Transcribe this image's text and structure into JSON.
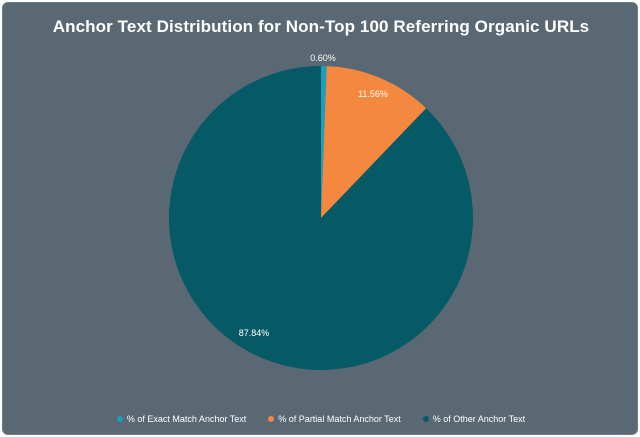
{
  "chart_data": {
    "type": "pie",
    "title": "Anchor Text Distribution for Non-Top 100 Referring Organic URLs",
    "slices": [
      {
        "label": "% of Exact Match Anchor Text",
        "value": 0.6,
        "display": "0.60%",
        "color": "#1a9fbd"
      },
      {
        "label": "% of Partial Match Anchor Text",
        "value": 11.56,
        "display": "11.56%",
        "color": "#f5883f"
      },
      {
        "label": "% of Other Anchor Text",
        "value": 87.84,
        "display": "87.84%",
        "color": "#055a66"
      }
    ],
    "start_angle": "top",
    "direction": "clockwise",
    "legend_position": "bottom"
  },
  "colors": {
    "background": "#596873",
    "text": "#ffffff"
  }
}
